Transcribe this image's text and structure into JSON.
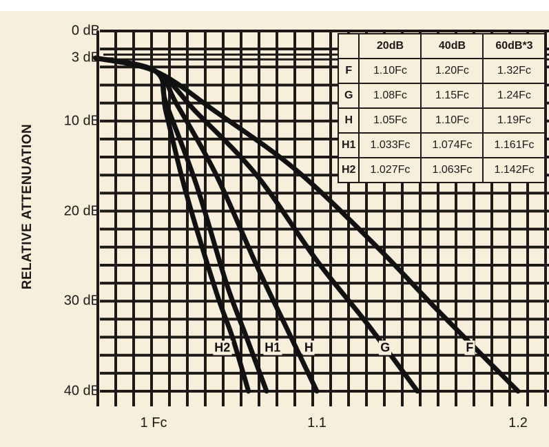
{
  "chart_data": {
    "type": "line",
    "title": "",
    "ylabel": "RELATIVE ATTENUATION",
    "xlabel": "",
    "xlim": [
      1.0,
      1.2
    ],
    "ylim": [
      0,
      40
    ],
    "y_reversed": true,
    "grid": true,
    "x_ticks": [
      {
        "value": 1.0,
        "label": "1 Fc"
      },
      {
        "value": 1.1,
        "label": "1.1"
      },
      {
        "value": 1.2,
        "label": "1.2"
      }
    ],
    "y_ticks": [
      {
        "value": 0,
        "label": "0 dB"
      },
      {
        "value": 3,
        "label": "3 dB"
      },
      {
        "value": 10,
        "label": "10 dB"
      },
      {
        "value": 20,
        "label": "20 dB"
      },
      {
        "value": 30,
        "label": "30 dB"
      },
      {
        "value": 40,
        "label": "40 dB"
      }
    ],
    "series": [
      {
        "name": "F",
        "label_pos": [
          1.176,
          35.2
        ],
        "points": [
          [
            0.99,
            3
          ],
          [
            1.02,
            4.5
          ],
          [
            1.05,
            9
          ],
          [
            1.09,
            15.5
          ],
          [
            1.13,
            24
          ],
          [
            1.16,
            31
          ],
          [
            1.2,
            40
          ]
        ]
      },
      {
        "name": "G",
        "label_pos": [
          1.134,
          35.2
        ],
        "points": [
          [
            0.99,
            3
          ],
          [
            1.02,
            4.5
          ],
          [
            1.04,
            9
          ],
          [
            1.07,
            16
          ],
          [
            1.1,
            25.5
          ],
          [
            1.125,
            32.5
          ],
          [
            1.15,
            40
          ]
        ]
      },
      {
        "name": "H",
        "label_pos": [
          1.096,
          35.2
        ],
        "points": [
          [
            0.99,
            3
          ],
          [
            1.02,
            4.5
          ],
          [
            1.03,
            8
          ],
          [
            1.05,
            16
          ],
          [
            1.07,
            26
          ],
          [
            1.085,
            33
          ],
          [
            1.1,
            40
          ]
        ]
      },
      {
        "name": "H1",
        "label_pos": [
          1.078,
          35.2
        ],
        "points": [
          [
            0.99,
            3
          ],
          [
            1.02,
            4.5
          ],
          [
            1.025,
            8
          ],
          [
            1.04,
            17
          ],
          [
            1.055,
            28
          ],
          [
            1.065,
            34
          ],
          [
            1.075,
            40
          ]
        ]
      },
      {
        "name": "H2",
        "label_pos": [
          1.053,
          35.2
        ],
        "points": [
          [
            0.99,
            3
          ],
          [
            1.02,
            4.5
          ],
          [
            1.025,
            9
          ],
          [
            1.035,
            18
          ],
          [
            1.05,
            29
          ],
          [
            1.058,
            34
          ],
          [
            1.066,
            40
          ]
        ]
      }
    ]
  },
  "table": {
    "headers": [
      "20dB",
      "40dB",
      "60dB*3"
    ],
    "rows": [
      {
        "label": "F",
        "values": [
          "1.10Fc",
          "1.20Fc",
          "1.32Fc"
        ]
      },
      {
        "label": "G",
        "values": [
          "1.08Fc",
          "1.15Fc",
          "1.24Fc"
        ]
      },
      {
        "label": "H",
        "values": [
          "1.05Fc",
          "1.10Fc",
          "1.19Fc"
        ]
      },
      {
        "label": "H1",
        "values": [
          "1.033Fc",
          "1.074Fc",
          "1.161Fc"
        ]
      },
      {
        "label": "H2",
        "values": [
          "1.027Fc",
          "1.063Fc",
          "1.142Fc"
        ]
      }
    ]
  }
}
